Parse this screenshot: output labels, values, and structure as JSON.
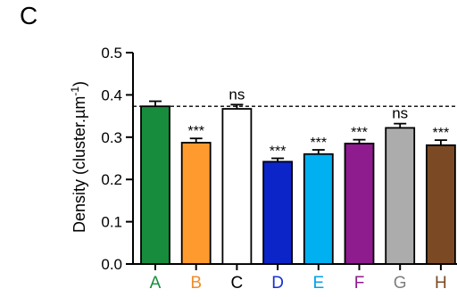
{
  "panel_label": "C",
  "chart_data": {
    "type": "bar",
    "title": "",
    "xlabel": "",
    "ylabel": "Density (cluster.µm",
    "ylabel_superscript": "-1",
    "ylabel_close": ")",
    "ylim": [
      0,
      0.5
    ],
    "yticks": [
      "0.0",
      "0.1",
      "0.2",
      "0.3",
      "0.4",
      "0.5"
    ],
    "categories": [
      "A",
      "B",
      "C",
      "D",
      "E",
      "F",
      "G",
      "H"
    ],
    "values": [
      0.373,
      0.287,
      0.367,
      0.242,
      0.26,
      0.285,
      0.322,
      0.281
    ],
    "errors": [
      0.012,
      0.01,
      0.01,
      0.008,
      0.01,
      0.009,
      0.01,
      0.012
    ],
    "annotations": [
      "",
      "***",
      "ns",
      "***",
      "***",
      "***",
      "ns",
      "***"
    ],
    "bar_colors": [
      "#178c3c",
      "#ff9a2e",
      "#ffffff",
      "#0b25c9",
      "#00b0f0",
      "#8e1c8e",
      "#acacac",
      "#7b4a24"
    ],
    "label_colors": [
      "#178c3c",
      "#f08c28",
      "#000000",
      "#1a2fd4",
      "#00a2e8",
      "#8e1c8e",
      "#7f7f7f",
      "#7b4a24"
    ],
    "reference_line": 0.373,
    "grid": false
  }
}
